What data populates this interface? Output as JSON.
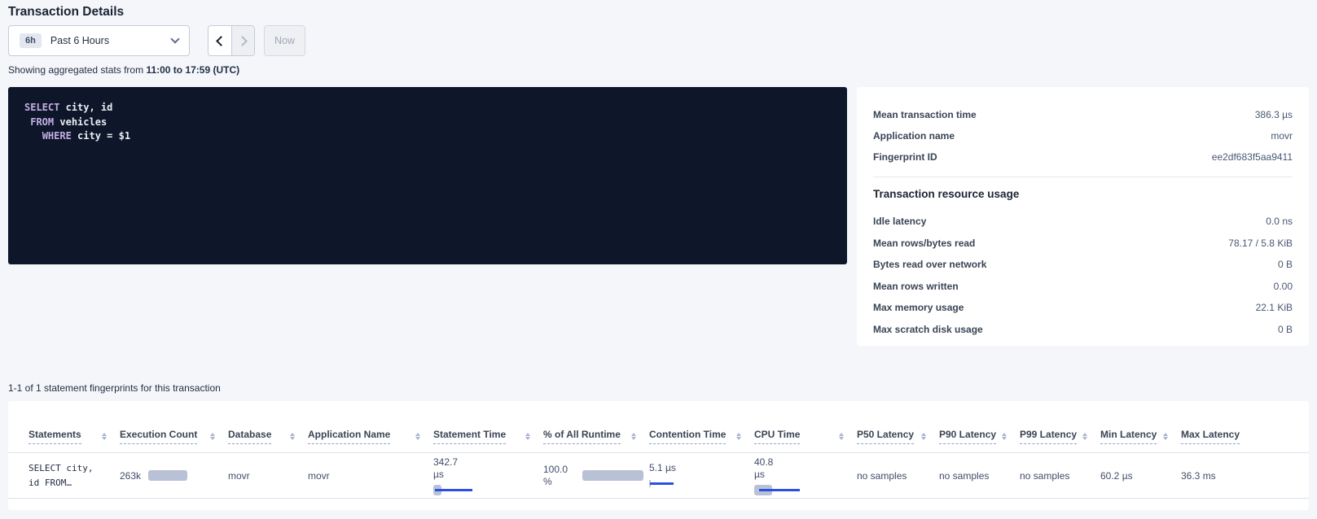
{
  "header": {
    "title": "Transaction Details"
  },
  "time_picker": {
    "badge": "6h",
    "selected_range": "Past 6 Hours",
    "now_label": "Now",
    "icons": {
      "open": "chevron-down-icon",
      "prev": "chevron-left-icon",
      "next": "chevron-right-icon"
    }
  },
  "stats_caption": {
    "prefix": "Showing aggregated stats from ",
    "range_bold": "11:00 to 17:59 (UTC)"
  },
  "sql": {
    "lines": [
      "SELECT city, id",
      " FROM vehicles",
      "   WHERE city = $1"
    ]
  },
  "summary": {
    "rows": [
      {
        "label": "Mean transaction time",
        "value": "386.3 µs"
      },
      {
        "label": "Application name",
        "value": "movr"
      },
      {
        "label": "Fingerprint ID",
        "value": "ee2df683f5aa9411"
      }
    ],
    "section_title": "Transaction resource usage",
    "resource_rows": [
      {
        "label": "Idle latency",
        "value": "0.0 ns"
      },
      {
        "label": "Mean rows/bytes read",
        "value": "78.17 / 5.8 KiB"
      },
      {
        "label": "Bytes read over network",
        "value": "0 B"
      },
      {
        "label": "Mean rows written",
        "value": "0.00"
      },
      {
        "label": "Max memory usage",
        "value": "22.1 KiB"
      },
      {
        "label": "Max scratch disk usage",
        "value": "0 B"
      }
    ]
  },
  "statements_section": {
    "caption": "1-1 of 1 statement fingerprints for this transaction",
    "columns": [
      "Statements",
      "Execution Count",
      "Database",
      "Application Name",
      "Statement Time",
      "% of All Runtime",
      "Contention Time",
      "CPU Time",
      "P50 Latency",
      "P90 Latency",
      "P99 Latency",
      "Min Latency",
      "Max Latency"
    ],
    "sort_icon": "sort-arrows-icon",
    "row": {
      "statement": "SELECT city, id FROM…",
      "execution_count": "263k",
      "database": "movr",
      "application_name": "movr",
      "statement_time": "342.7 µs",
      "pct_of_all_runtime": "100.0 %",
      "contention_time": "5.1 µs",
      "cpu_time": "40.8 µs",
      "p50_latency": "no samples",
      "p90_latency": "no samples",
      "p99_latency": "no samples",
      "min_latency": "60.2 µs",
      "max_latency": "36.3 ms"
    }
  },
  "colors": {
    "accent_blue": "#2b50e2",
    "bar_gray": "#b9c1d6",
    "sql_bg": "#0d1729",
    "keyword_purple": "#c5aee3"
  }
}
